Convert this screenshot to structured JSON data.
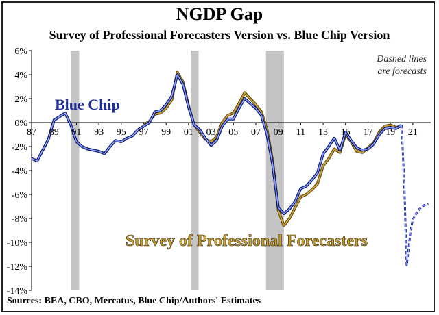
{
  "title": "NGDP Gap",
  "subtitle": "Survey of Professional Forecasters Version vs. Blue Chip Version",
  "source": "Sources: BEA, CBO, Mercatus, Blue Chip/Authors' Estimates",
  "chart_data": {
    "type": "line",
    "title": "NGDP Gap",
    "subtitle": "Survey of Professional Forecasters Version vs. Blue Chip Version",
    "ylim": [
      -14,
      6
    ],
    "xlim": [
      1987,
      2022.6
    ],
    "y_ticks": [
      6,
      4,
      2,
      0,
      -2,
      -4,
      -6,
      -8,
      -10,
      -12,
      -14
    ],
    "y_tick_labels": [
      "6%",
      "4%",
      "2%",
      "0%",
      "-2%",
      "-4%",
      "-6%",
      "-8%",
      "-10%",
      "-12%",
      "-14%"
    ],
    "x_ticks": [
      1987,
      1989,
      1991,
      1993,
      1995,
      1997,
      1999,
      2001,
      2003,
      2005,
      2007,
      2009,
      2011,
      2013,
      2015,
      2017,
      2019,
      2021
    ],
    "x_tick_labels": [
      "87",
      "89",
      "91",
      "93",
      "95",
      "97",
      "99",
      "01",
      "03",
      "05",
      "07",
      "09",
      "11",
      "13",
      "15",
      "17",
      "19",
      "21"
    ],
    "recessions": [
      [
        1990.5,
        1991.25
      ],
      [
        2001.2,
        2001.9
      ],
      [
        2007.9,
        2009.5
      ]
    ],
    "annotations": [
      "Dashed lines",
      "are  forecasts"
    ],
    "series": [
      {
        "name": "Blue Chip",
        "color": "#1f2fb0",
        "x": [
          1987.0,
          1987.5,
          1988.0,
          1988.5,
          1989.0,
          1989.5,
          1990.0,
          1990.5,
          1991.0,
          1991.5,
          1992.0,
          1992.5,
          1993.0,
          1993.5,
          1994.0,
          1994.5,
          1995.0,
          1995.5,
          1996.0,
          1996.5,
          1997.0,
          1997.5,
          1998.0,
          1998.5,
          1999.0,
          1999.5,
          2000.0,
          2000.5,
          2001.0,
          2001.5,
          2002.0,
          2002.5,
          2003.0,
          2003.5,
          2004.0,
          2004.5,
          2005.0,
          2005.5,
          2006.0,
          2006.5,
          2007.0,
          2007.5,
          2008.0,
          2008.5,
          2009.0,
          2009.5,
          2010.0,
          2010.5,
          2011.0,
          2011.5,
          2012.0,
          2012.5,
          2013.0,
          2013.5,
          2014.0,
          2014.5,
          2015.0,
          2015.5,
          2016.0,
          2016.5,
          2017.0,
          2017.5,
          2018.0,
          2018.5,
          2019.0,
          2019.5,
          2020.0
        ],
        "values": [
          -3.0,
          -3.2,
          -2.3,
          -1.4,
          0.2,
          0.5,
          0.8,
          -0.2,
          -1.6,
          -2.0,
          -2.2,
          -2.3,
          -2.4,
          -2.6,
          -2.0,
          -1.5,
          -1.6,
          -1.3,
          -1.1,
          -0.6,
          -0.3,
          0.0,
          0.9,
          1.0,
          1.5,
          2.2,
          4.0,
          3.2,
          1.3,
          -0.2,
          -0.6,
          -1.3,
          -1.9,
          -1.5,
          -0.3,
          0.3,
          0.3,
          1.2,
          2.0,
          1.6,
          1.2,
          0.6,
          -1.0,
          -3.5,
          -7.1,
          -7.6,
          -7.2,
          -6.6,
          -5.5,
          -5.3,
          -4.8,
          -4.2,
          -2.6,
          -2.0,
          -1.3,
          -2.3,
          -0.8,
          -1.5,
          -2.1,
          -2.3,
          -2.2,
          -1.8,
          -1.0,
          -0.5,
          -0.4,
          -0.5,
          -0.2
        ],
        "forecast": {
          "x": [
            2020.0,
            2020.25,
            2020.45,
            2020.6,
            2020.8,
            2021.0,
            2021.3,
            2021.6,
            2022.0,
            2022.4
          ],
          "values": [
            -0.2,
            -5.5,
            -11.9,
            -10.8,
            -9.0,
            -8.1,
            -7.6,
            -7.2,
            -6.9,
            -6.8
          ]
        }
      },
      {
        "name": "Survey of Professional Forecasters",
        "color": "#c9a035",
        "x": [
          1997.0,
          1997.5,
          1998.0,
          1998.5,
          1999.0,
          1999.5,
          2000.0,
          2000.5,
          2001.0,
          2001.5,
          2002.0,
          2002.5,
          2003.0,
          2003.5,
          2004.0,
          2004.5,
          2005.0,
          2005.5,
          2006.0,
          2006.5,
          2007.0,
          2007.5,
          2008.0,
          2008.5,
          2009.0,
          2009.5,
          2010.0,
          2010.5,
          2011.0,
          2011.5,
          2012.0,
          2012.5,
          2013.0,
          2013.5,
          2014.0,
          2014.5,
          2015.0,
          2015.5,
          2016.0,
          2016.5,
          2017.0,
          2017.5,
          2018.0,
          2018.5,
          2019.0,
          2019.5,
          2020.0
        ],
        "values": [
          -0.2,
          0.1,
          0.7,
          0.8,
          1.2,
          1.9,
          4.2,
          3.4,
          1.4,
          -0.2,
          -0.8,
          -1.4,
          -1.6,
          -1.2,
          0.0,
          0.6,
          0.8,
          1.6,
          2.5,
          2.0,
          1.5,
          0.9,
          -0.6,
          -3.2,
          -7.3,
          -8.6,
          -8.0,
          -7.1,
          -6.2,
          -6.0,
          -5.6,
          -5.1,
          -3.6,
          -3.0,
          -2.2,
          -2.5,
          -1.0,
          -1.6,
          -2.4,
          -2.5,
          -2.1,
          -1.7,
          -0.8,
          -0.3,
          -0.2,
          -0.4,
          -0.3
        ]
      }
    ]
  }
}
